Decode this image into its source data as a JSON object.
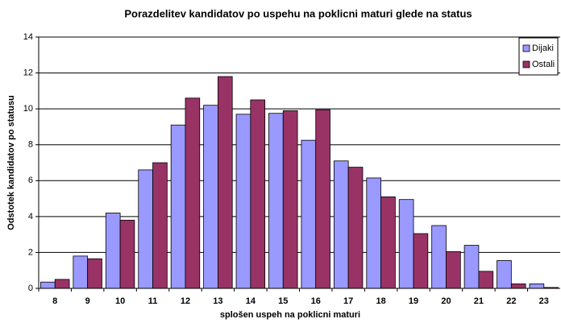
{
  "chart_data": {
    "type": "bar",
    "title": "Porazdelitev kandidatov po uspehu na poklicni maturi glede na status",
    "x_label": "splošen uspeh na poklicni maturi",
    "y_label": "Odstotek kandidatov po statusu",
    "categories": [
      "8",
      "9",
      "10",
      "11",
      "12",
      "13",
      "14",
      "15",
      "16",
      "17",
      "18",
      "19",
      "20",
      "21",
      "22",
      "23"
    ],
    "series": [
      {
        "name": "Dijaki",
        "color": "#9999ff",
        "values": [
          0.35,
          1.8,
          4.2,
          6.6,
          9.1,
          10.2,
          9.7,
          9.75,
          8.25,
          7.1,
          6.15,
          4.95,
          3.5,
          2.4,
          1.55,
          0.25
        ]
      },
      {
        "name": "Ostali",
        "color": "#993366",
        "values": [
          0.5,
          1.65,
          3.8,
          7.0,
          10.6,
          11.8,
          10.5,
          9.9,
          9.95,
          6.75,
          5.1,
          3.05,
          2.05,
          0.95,
          0.25,
          0.05
        ]
      }
    ],
    "ylim": [
      0,
      14
    ],
    "yticks": [
      0,
      2,
      4,
      6,
      8,
      10,
      12,
      14
    ],
    "grid": true,
    "legend": "top-right"
  }
}
